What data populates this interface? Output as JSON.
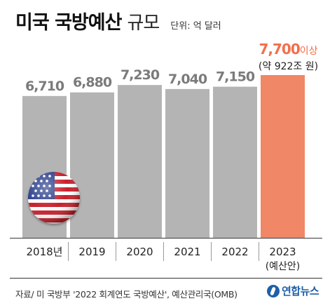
{
  "header": {
    "title_bold": "미국 국방예산",
    "title_light": "규모",
    "unit_text": "단위: 억 달러"
  },
  "chart_data": {
    "type": "bar",
    "categories": [
      "2018년",
      "2019",
      "2020",
      "2021",
      "2022",
      "2023"
    ],
    "category_sublabels": [
      "",
      "",
      "",
      "",
      "",
      "(예산안)"
    ],
    "values": [
      6710,
      6880,
      7230,
      7040,
      7150,
      7700
    ],
    "value_labels": [
      "6,710",
      "6,880",
      "7,230",
      "7,040",
      "7,150",
      "7,700"
    ],
    "highlight": {
      "index": 5,
      "suffix": "이상",
      "note": "(약 922조 원)",
      "color": "#f08766",
      "value_color": "#f26f4b"
    },
    "bar_color": "#b4b4b4",
    "value_label_color": "#7b7b7b",
    "ylim": [
      0,
      7700
    ]
  },
  "flag_icon": "us-flag-sphere-icon",
  "footer": {
    "source": "자료/ 미 국방부 '2022 회계연도 국방예산', 예산관리국(OMB)",
    "logo_text": "연합뉴스"
  }
}
